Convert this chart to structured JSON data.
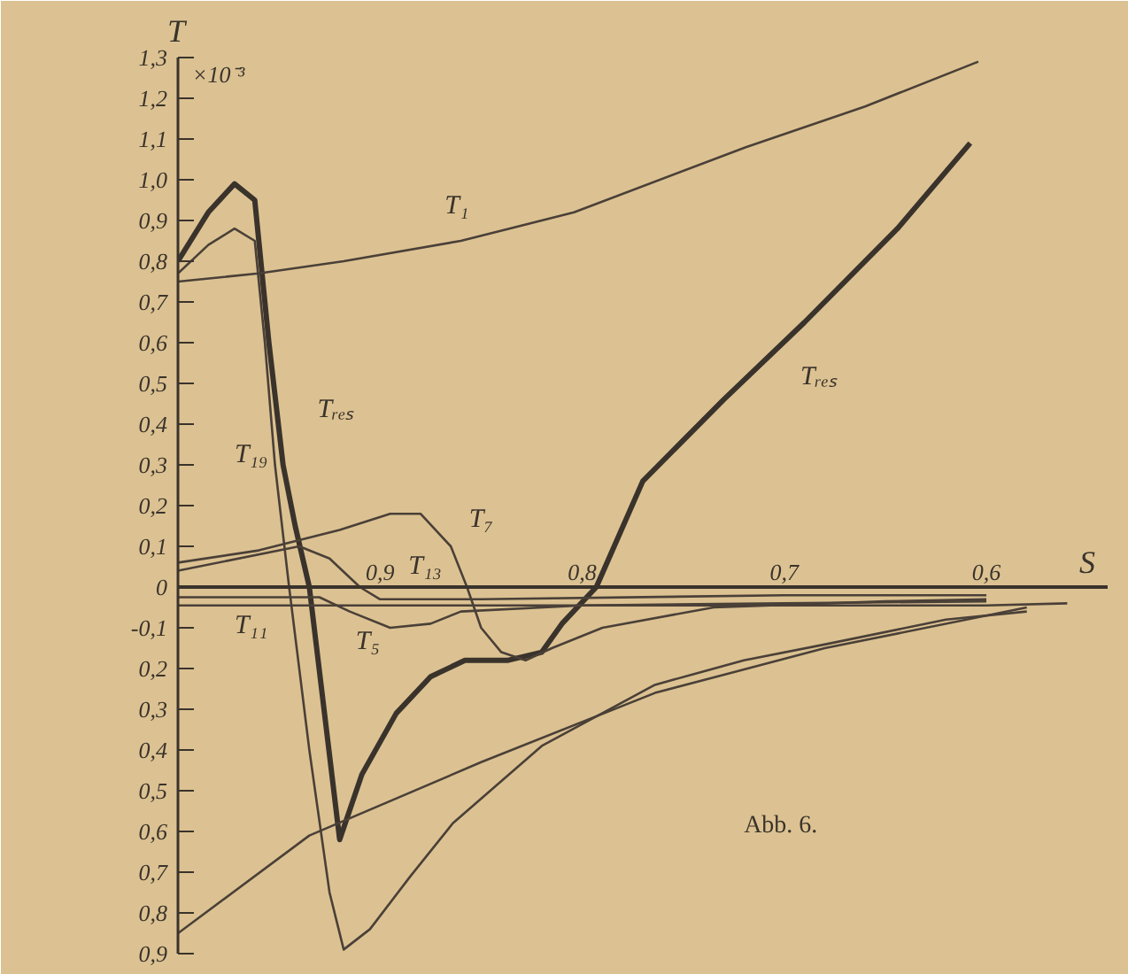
{
  "chart_data": {
    "type": "line",
    "xlabel": "S",
    "ylabel": "T",
    "annotations": [
      "×10⁻³",
      "Abb. 6."
    ],
    "xlim": [
      1.0,
      0.54
    ],
    "ylim": [
      -0.9,
      1.3
    ],
    "xticks": [
      {
        "value": 0.9,
        "label": "0,9"
      },
      {
        "value": 0.8,
        "label": "0,8"
      },
      {
        "value": 0.7,
        "label": "0,7"
      },
      {
        "value": 0.6,
        "label": "0,6"
      }
    ],
    "yticks": [
      {
        "value": 1.3,
        "label": "1,3"
      },
      {
        "value": 1.2,
        "label": "1,2"
      },
      {
        "value": 1.1,
        "label": "1,1"
      },
      {
        "value": 1.0,
        "label": "1,0"
      },
      {
        "value": 0.9,
        "label": "0,9"
      },
      {
        "value": 0.8,
        "label": "0,8"
      },
      {
        "value": 0.7,
        "label": "0,7"
      },
      {
        "value": 0.6,
        "label": "0,6"
      },
      {
        "value": 0.5,
        "label": "0,5"
      },
      {
        "value": 0.4,
        "label": "0,4"
      },
      {
        "value": 0.3,
        "label": "0,3"
      },
      {
        "value": 0.2,
        "label": "0,2"
      },
      {
        "value": 0.1,
        "label": "0,1"
      },
      0,
      {
        "value": -0.1,
        "label": "-0,1"
      },
      {
        "value": -0.2,
        "label": "0,2"
      },
      {
        "value": -0.3,
        "label": "0,3"
      },
      {
        "value": -0.4,
        "label": "0,4"
      },
      {
        "value": -0.5,
        "label": "0,5"
      },
      {
        "value": -0.6,
        "label": "0,6"
      },
      {
        "value": -0.7,
        "label": "0,7"
      },
      {
        "value": -0.8,
        "label": "0,8"
      },
      {
        "value": -0.9,
        "label": "0,9"
      }
    ],
    "grid": false,
    "marker": "none",
    "line_style": "solid",
    "series": [
      {
        "name": "Tᵣₑₛ",
        "color": "#3a332c",
        "x": [
          1.0,
          0.985,
          0.972,
          0.962,
          0.955,
          0.948,
          0.942,
          0.935,
          0.92,
          0.909,
          0.892,
          0.875,
          0.858,
          0.837,
          0.82,
          0.81,
          0.793,
          0.77,
          0.73,
          0.69,
          0.644,
          0.608
        ],
        "values": [
          0.8,
          0.92,
          0.99,
          0.95,
          0.6,
          0.3,
          0.15,
          0.0,
          -0.62,
          -0.46,
          -0.31,
          -0.22,
          -0.18,
          -0.18,
          -0.16,
          -0.09,
          0.0,
          0.26,
          0.46,
          0.65,
          0.88,
          1.09
        ]
      },
      {
        "name": "T₁₉",
        "color": "#4a4038",
        "x": [
          1.0,
          0.985,
          0.972,
          0.962,
          0.957,
          0.952,
          0.945,
          0.935,
          0.925,
          0.918,
          0.905,
          0.885,
          0.864,
          0.82,
          0.764,
          0.72,
          0.679,
          0.62,
          0.58
        ],
        "values": [
          0.77,
          0.84,
          0.88,
          0.85,
          0.6,
          0.3,
          0.0,
          -0.4,
          -0.75,
          -0.89,
          -0.84,
          -0.71,
          -0.58,
          -0.39,
          -0.24,
          -0.18,
          -0.14,
          -0.08,
          -0.06
        ]
      },
      {
        "name": "T₁",
        "color": "#4a4038",
        "x": [
          1.0,
          0.96,
          0.918,
          0.86,
          0.804,
          0.719,
          0.66,
          0.604
        ],
        "values": [
          0.75,
          0.77,
          0.8,
          0.85,
          0.92,
          1.08,
          1.18,
          1.29
        ]
      },
      {
        "name": "T₇",
        "color": "#4a4038",
        "x": [
          1.0,
          0.96,
          0.92,
          0.895,
          0.88,
          0.865,
          0.857,
          0.85,
          0.84,
          0.828,
          0.815,
          0.79,
          0.735,
          0.65,
          0.6
        ],
        "values": [
          0.06,
          0.09,
          0.14,
          0.18,
          0.18,
          0.1,
          0.0,
          -0.1,
          -0.16,
          -0.18,
          -0.15,
          -0.1,
          -0.05,
          -0.035,
          -0.03
        ]
      },
      {
        "name": "T₁₃",
        "color": "#4a4038",
        "x": [
          1.0,
          0.94,
          0.925,
          0.91,
          0.9,
          0.85,
          0.7,
          0.6
        ],
        "values": [
          0.04,
          0.1,
          0.07,
          0.0,
          -0.03,
          -0.03,
          -0.02,
          -0.02
        ]
      },
      {
        "name": "T₅",
        "color": "#4a4038",
        "x": [
          1.0,
          0.93,
          0.915,
          0.895,
          0.875,
          0.86,
          0.8,
          0.7,
          0.6
        ],
        "values": [
          -0.025,
          -0.025,
          -0.06,
          -0.1,
          -0.09,
          -0.06,
          -0.045,
          -0.04,
          -0.035
        ]
      },
      {
        "name": "T₁₁",
        "color": "#4a4038",
        "x": [
          1.0,
          0.8,
          0.6,
          0.56
        ],
        "values": [
          -0.045,
          -0.045,
          -0.045,
          -0.04
        ]
      },
      {
        "color": "#4a4038",
        "x": [
          1.0,
          0.935,
          0.85,
          0.764,
          0.68,
          0.58
        ],
        "values": [
          -0.85,
          -0.61,
          -0.43,
          -0.26,
          -0.15,
          -0.05
        ]
      }
    ]
  }
}
